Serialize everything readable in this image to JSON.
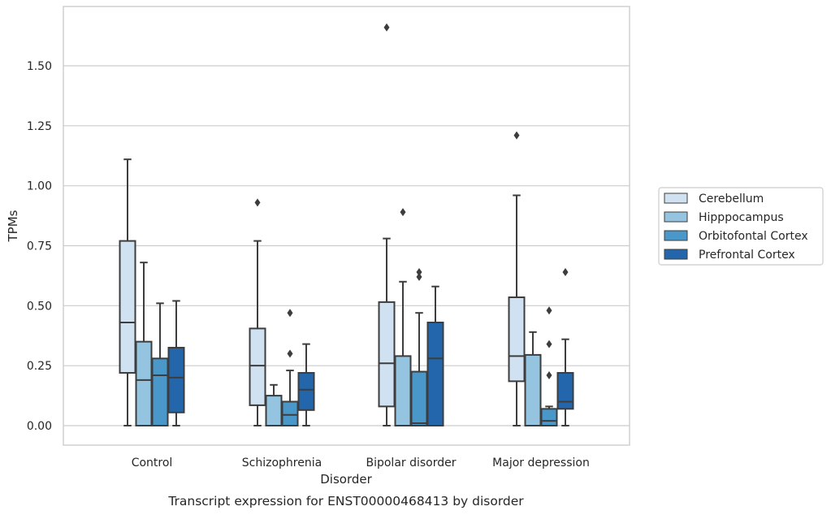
{
  "caption": "Transcript expression for ENST00000468413 by disorder",
  "chart_data": {
    "type": "box",
    "title": "",
    "xlabel": "Disorder",
    "ylabel": "TPMs",
    "ylim": [
      -0.08,
      1.78
    ],
    "yticks": [
      0.0,
      0.25,
      0.5,
      0.75,
      1.0,
      1.25,
      1.5
    ],
    "ytick_labels": [
      "0.00",
      "0.25",
      "0.50",
      "0.75",
      "1.00",
      "1.25",
      "1.50"
    ],
    "grid": "horizontal",
    "legend_position": "right",
    "categories": [
      "Control",
      "Schizophrenia",
      "Bipolar disorder",
      "Major depression"
    ],
    "series": [
      {
        "name": "Cerebellum",
        "color": "#d0e1f2",
        "boxes": [
          {
            "min": 0.0,
            "q1": 0.22,
            "median": 0.43,
            "q3": 0.77,
            "max": 1.11,
            "outliers": []
          },
          {
            "min": 0.0,
            "q1": 0.085,
            "median": 0.25,
            "q3": 0.405,
            "max": 0.77,
            "outliers": [
              0.93
            ]
          },
          {
            "min": 0.0,
            "q1": 0.08,
            "median": 0.26,
            "q3": 0.515,
            "max": 0.78,
            "outliers": [
              1.66
            ]
          },
          {
            "min": 0.0,
            "q1": 0.185,
            "median": 0.29,
            "q3": 0.535,
            "max": 0.96,
            "outliers": [
              1.21
            ]
          }
        ]
      },
      {
        "name": "Hipppocampus",
        "color": "#94c4df",
        "boxes": [
          {
            "min": 0.0,
            "q1": 0.0,
            "median": 0.19,
            "q3": 0.35,
            "max": 0.68,
            "outliers": []
          },
          {
            "min": 0.0,
            "q1": 0.0,
            "median": 0.0,
            "q3": 0.125,
            "max": 0.17,
            "outliers": []
          },
          {
            "min": 0.0,
            "q1": 0.0,
            "median": 0.0,
            "q3": 0.29,
            "max": 0.6,
            "outliers": [
              0.89
            ]
          },
          {
            "min": 0.0,
            "q1": 0.0,
            "median": 0.0,
            "q3": 0.295,
            "max": 0.39,
            "outliers": []
          }
        ]
      },
      {
        "name": "Orbitofontal Cortex",
        "color": "#4a98c9",
        "boxes": [
          {
            "min": 0.0,
            "q1": 0.0,
            "median": 0.21,
            "q3": 0.28,
            "max": 0.51,
            "outliers": []
          },
          {
            "min": 0.0,
            "q1": 0.0,
            "median": 0.045,
            "q3": 0.1,
            "max": 0.23,
            "outliers": [
              0.3,
              0.47
            ]
          },
          {
            "min": 0.0,
            "q1": 0.0,
            "median": 0.01,
            "q3": 0.225,
            "max": 0.47,
            "outliers": [
              0.62,
              0.64
            ]
          },
          {
            "min": 0.0,
            "q1": 0.0,
            "median": 0.02,
            "q3": 0.07,
            "max": 0.08,
            "outliers": [
              0.21,
              0.34,
              0.48
            ]
          }
        ]
      },
      {
        "name": "Prefrontal Cortex",
        "color": "#2366ab",
        "boxes": [
          {
            "min": 0.0,
            "q1": 0.055,
            "median": 0.2,
            "q3": 0.325,
            "max": 0.52,
            "outliers": []
          },
          {
            "min": 0.0,
            "q1": 0.065,
            "median": 0.15,
            "q3": 0.22,
            "max": 0.34,
            "outliers": []
          },
          {
            "min": 0.0,
            "q1": 0.0,
            "median": 0.28,
            "q3": 0.43,
            "max": 0.58,
            "outliers": []
          },
          {
            "min": 0.0,
            "q1": 0.07,
            "median": 0.1,
            "q3": 0.22,
            "max": 0.36,
            "outliers": [
              0.64
            ]
          }
        ]
      }
    ]
  }
}
